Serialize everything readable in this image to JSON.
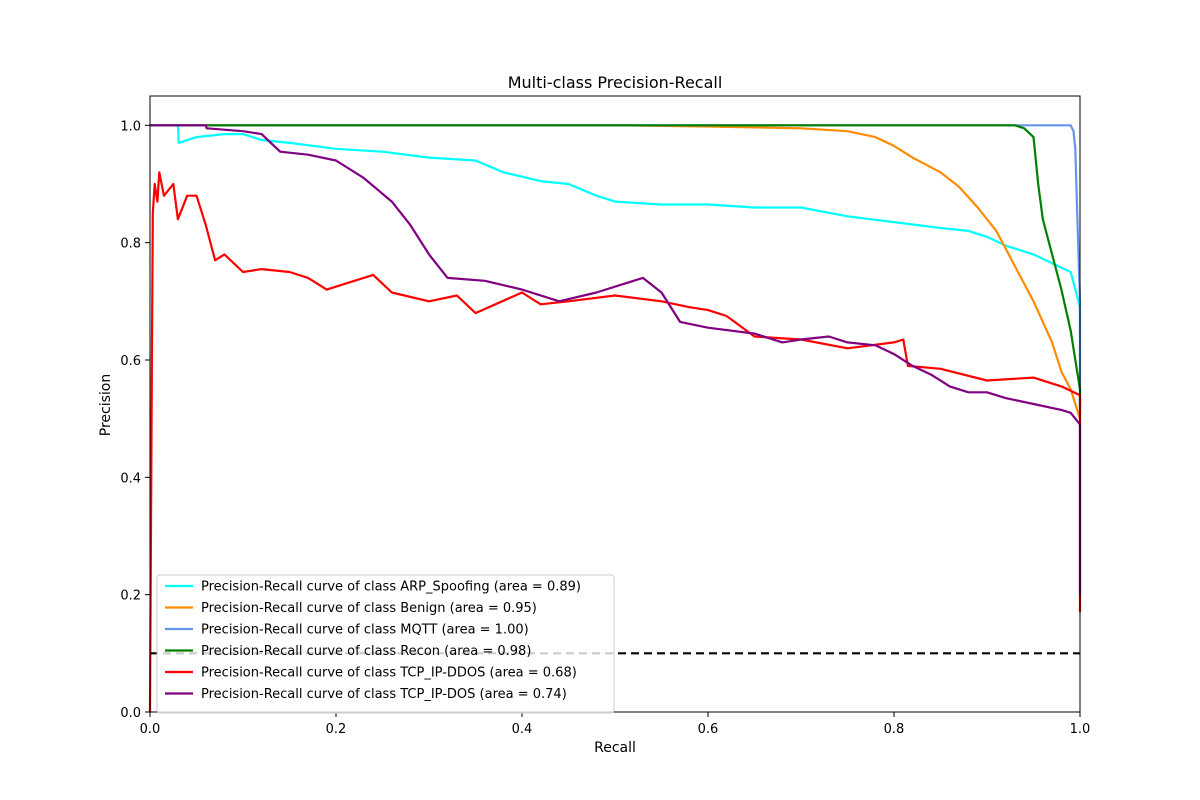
{
  "chart_data": {
    "type": "line",
    "title": "Multi-class Precision-Recall",
    "xlabel": "Recall",
    "ylabel": "Precision",
    "xlim": [
      0.0,
      1.0
    ],
    "ylim": [
      0.0,
      1.05
    ],
    "grid": false,
    "legend_position": "lower-left",
    "x_ticks": [
      0.0,
      0.2,
      0.4,
      0.6,
      0.8,
      1.0
    ],
    "x_tick_labels": [
      "0.0",
      "0.2",
      "0.4",
      "0.6",
      "0.8",
      "1.0"
    ],
    "y_ticks": [
      0.0,
      0.2,
      0.4,
      0.6,
      0.8,
      1.0
    ],
    "y_tick_labels": [
      "0.0",
      "0.2",
      "0.4",
      "0.6",
      "0.8",
      "1.0"
    ],
    "baseline": {
      "y": 0.1,
      "color": "#000000",
      "style": "dashed"
    },
    "series": [
      {
        "name": "Precision-Recall curve of class ARP_Spoofing (area = 0.89)",
        "color": "#00ffff",
        "points": [
          [
            0,
            1.0
          ],
          [
            0.03,
            1.0
          ],
          [
            0.031,
            0.97
          ],
          [
            0.05,
            0.98
          ],
          [
            0.08,
            0.985
          ],
          [
            0.1,
            0.985
          ],
          [
            0.12,
            0.975
          ],
          [
            0.15,
            0.97
          ],
          [
            0.2,
            0.96
          ],
          [
            0.25,
            0.955
          ],
          [
            0.3,
            0.945
          ],
          [
            0.35,
            0.94
          ],
          [
            0.38,
            0.92
          ],
          [
            0.42,
            0.905
          ],
          [
            0.45,
            0.9
          ],
          [
            0.48,
            0.88
          ],
          [
            0.5,
            0.87
          ],
          [
            0.55,
            0.865
          ],
          [
            0.6,
            0.865
          ],
          [
            0.65,
            0.86
          ],
          [
            0.7,
            0.86
          ],
          [
            0.75,
            0.845
          ],
          [
            0.8,
            0.835
          ],
          [
            0.85,
            0.825
          ],
          [
            0.88,
            0.82
          ],
          [
            0.9,
            0.81
          ],
          [
            0.92,
            0.795
          ],
          [
            0.95,
            0.78
          ],
          [
            0.97,
            0.765
          ],
          [
            0.99,
            0.75
          ],
          [
            1.0,
            0.69
          ],
          [
            1.0,
            0.52
          ]
        ]
      },
      {
        "name": "Precision-Recall curve of class Benign (area = 0.95)",
        "color": "#ff8c00",
        "points": [
          [
            0,
            1.0
          ],
          [
            0.5,
            1.0
          ],
          [
            0.6,
            0.998
          ],
          [
            0.7,
            0.995
          ],
          [
            0.75,
            0.99
          ],
          [
            0.78,
            0.98
          ],
          [
            0.8,
            0.965
          ],
          [
            0.82,
            0.945
          ],
          [
            0.85,
            0.92
          ],
          [
            0.87,
            0.895
          ],
          [
            0.89,
            0.86
          ],
          [
            0.91,
            0.82
          ],
          [
            0.93,
            0.76
          ],
          [
            0.95,
            0.7
          ],
          [
            0.97,
            0.63
          ],
          [
            0.98,
            0.58
          ],
          [
            0.99,
            0.55
          ],
          [
            1.0,
            0.5
          ]
        ]
      },
      {
        "name": "Precision-Recall curve of class MQTT (area = 1.00)",
        "color": "#6495ed",
        "points": [
          [
            0,
            1.0
          ],
          [
            0.95,
            1.0
          ],
          [
            0.99,
            1.0
          ],
          [
            0.993,
            0.99
          ],
          [
            0.995,
            0.96
          ],
          [
            0.998,
            0.8
          ],
          [
            1.0,
            0.7
          ],
          [
            1.0,
            0.55
          ]
        ]
      },
      {
        "name": "Precision-Recall curve of class Recon (area = 0.98)",
        "color": "#008000",
        "points": [
          [
            0,
            1.0
          ],
          [
            0.93,
            1.0
          ],
          [
            0.94,
            0.995
          ],
          [
            0.95,
            0.98
          ],
          [
            0.955,
            0.9
          ],
          [
            0.96,
            0.84
          ],
          [
            0.97,
            0.78
          ],
          [
            0.98,
            0.72
          ],
          [
            0.99,
            0.65
          ],
          [
            0.995,
            0.6
          ],
          [
            1.0,
            0.55
          ],
          [
            1.0,
            0.5
          ]
        ]
      },
      {
        "name": "Precision-Recall curve of class TCP_IP-DDOS (area = 0.68)",
        "color": "#ff0000",
        "points": [
          [
            0,
            0.0
          ],
          [
            0.002,
            0.6
          ],
          [
            0.003,
            0.85
          ],
          [
            0.005,
            0.9
          ],
          [
            0.008,
            0.87
          ],
          [
            0.01,
            0.92
          ],
          [
            0.015,
            0.88
          ],
          [
            0.02,
            0.89
          ],
          [
            0.025,
            0.9
          ],
          [
            0.03,
            0.84
          ],
          [
            0.04,
            0.88
          ],
          [
            0.05,
            0.88
          ],
          [
            0.06,
            0.83
          ],
          [
            0.07,
            0.77
          ],
          [
            0.08,
            0.78
          ],
          [
            0.1,
            0.75
          ],
          [
            0.12,
            0.755
          ],
          [
            0.15,
            0.75
          ],
          [
            0.17,
            0.74
          ],
          [
            0.19,
            0.72
          ],
          [
            0.21,
            0.73
          ],
          [
            0.24,
            0.745
          ],
          [
            0.26,
            0.715
          ],
          [
            0.3,
            0.7
          ],
          [
            0.33,
            0.71
          ],
          [
            0.35,
            0.68
          ],
          [
            0.4,
            0.715
          ],
          [
            0.42,
            0.695
          ],
          [
            0.45,
            0.7
          ],
          [
            0.5,
            0.71
          ],
          [
            0.55,
            0.7
          ],
          [
            0.58,
            0.69
          ],
          [
            0.6,
            0.685
          ],
          [
            0.62,
            0.675
          ],
          [
            0.65,
            0.64
          ],
          [
            0.7,
            0.635
          ],
          [
            0.75,
            0.62
          ],
          [
            0.8,
            0.63
          ],
          [
            0.81,
            0.635
          ],
          [
            0.815,
            0.59
          ],
          [
            0.85,
            0.585
          ],
          [
            0.9,
            0.565
          ],
          [
            0.95,
            0.57
          ],
          [
            0.98,
            0.555
          ],
          [
            1.0,
            0.54
          ],
          [
            1.0,
            0.17
          ]
        ]
      },
      {
        "name": "Precision-Recall curve of class TCP_IP-DOS (area = 0.74)",
        "color": "#800080",
        "points": [
          [
            0,
            1.0
          ],
          [
            0.06,
            1.0
          ],
          [
            0.061,
            0.995
          ],
          [
            0.1,
            0.99
          ],
          [
            0.12,
            0.985
          ],
          [
            0.13,
            0.97
          ],
          [
            0.14,
            0.955
          ],
          [
            0.17,
            0.95
          ],
          [
            0.2,
            0.94
          ],
          [
            0.23,
            0.91
          ],
          [
            0.26,
            0.87
          ],
          [
            0.28,
            0.83
          ],
          [
            0.3,
            0.78
          ],
          [
            0.32,
            0.74
          ],
          [
            0.36,
            0.735
          ],
          [
            0.4,
            0.72
          ],
          [
            0.44,
            0.7
          ],
          [
            0.48,
            0.715
          ],
          [
            0.53,
            0.74
          ],
          [
            0.55,
            0.715
          ],
          [
            0.57,
            0.665
          ],
          [
            0.6,
            0.655
          ],
          [
            0.65,
            0.645
          ],
          [
            0.68,
            0.63
          ],
          [
            0.7,
            0.635
          ],
          [
            0.73,
            0.64
          ],
          [
            0.75,
            0.63
          ],
          [
            0.78,
            0.625
          ],
          [
            0.8,
            0.61
          ],
          [
            0.82,
            0.59
          ],
          [
            0.84,
            0.575
          ],
          [
            0.86,
            0.555
          ],
          [
            0.88,
            0.545
          ],
          [
            0.9,
            0.545
          ],
          [
            0.92,
            0.535
          ],
          [
            0.95,
            0.525
          ],
          [
            0.98,
            0.515
          ],
          [
            0.99,
            0.51
          ],
          [
            1.0,
            0.49
          ],
          [
            1.0,
            0.2
          ]
        ]
      }
    ]
  }
}
